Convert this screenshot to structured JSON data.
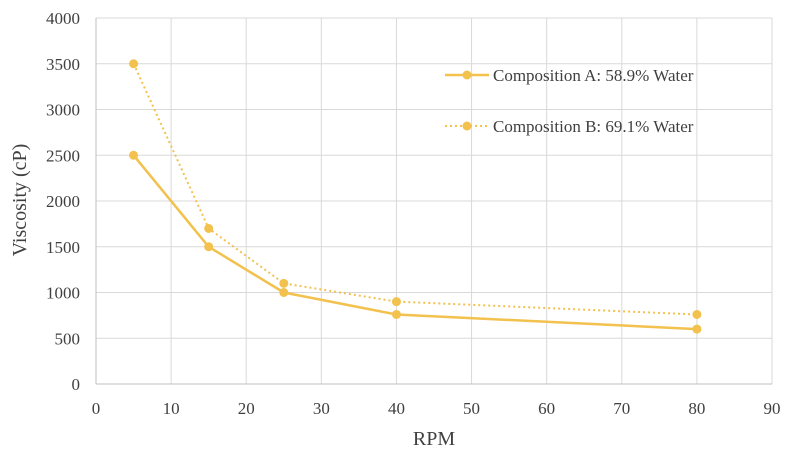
{
  "chart_data": {
    "type": "line",
    "title": "",
    "xlabel": "RPM",
    "ylabel": "Viscosity (cP)",
    "xlim": [
      0,
      90
    ],
    "ylim": [
      0,
      4000
    ],
    "xticks": [
      0,
      10,
      20,
      30,
      40,
      50,
      60,
      70,
      80,
      90
    ],
    "yticks": [
      0,
      500,
      1000,
      1500,
      2000,
      2500,
      3000,
      3500,
      4000
    ],
    "grid": true,
    "legend_position": "top-right",
    "series": [
      {
        "name": "Composition A: 58.9% Water",
        "color": "#F2C14E",
        "line_style": "solid",
        "marker": "circle",
        "x": [
          5,
          15,
          25,
          40,
          80
        ],
        "y": [
          2500,
          1500,
          1000,
          760,
          600
        ]
      },
      {
        "name": "Composition B: 69.1% Water",
        "color": "#F2C14E",
        "line_style": "dotted",
        "marker": "circle",
        "x": [
          5,
          15,
          25,
          40,
          80
        ],
        "y": [
          3500,
          1700,
          1100,
          900,
          760
        ]
      }
    ]
  }
}
